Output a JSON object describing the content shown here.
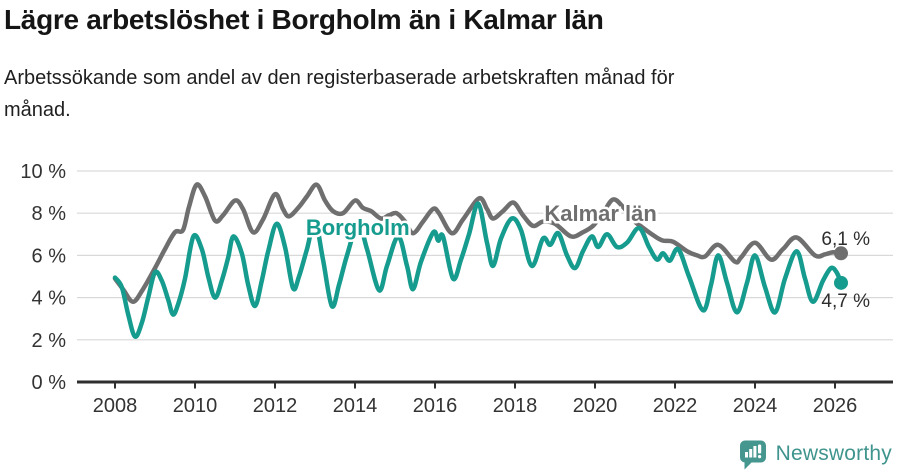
{
  "header": {
    "title": "Lägre arbetslöshet i Borgholm än i Kalmar län",
    "subtitle": "Arbetssökande som andel av den registerbaserade arbetskraften månad för månad."
  },
  "footer": {
    "brand": "Newsworthy",
    "brand_color": "#3f948e",
    "icon": "speech-bubble-bar-chart-icon"
  },
  "colors": {
    "borgholm": "#169c8e",
    "kalmar": "#6f6f6f",
    "grid": "#d9d9d9",
    "axis": "#2e2e2e"
  },
  "chart_data": {
    "type": "line",
    "title": "Lägre arbetslöshet i Borgholm än i Kalmar län",
    "subtitle": "Arbetssökande som andel av den registerbaserade arbetskraften månad för månad.",
    "unit": "%",
    "xlim": [
      2007.6,
      2026.9
    ],
    "ylim": [
      0,
      10
    ],
    "grid": "horizontal",
    "legend_position": "inline-labels",
    "x_ticks": [
      2008,
      2010,
      2012,
      2014,
      2016,
      2018,
      2020,
      2022,
      2024,
      2026
    ],
    "x_tick_labels": [
      "2008",
      "2010",
      "2012",
      "2014",
      "2016",
      "2018",
      "2020",
      "2022",
      "2024",
      "2026"
    ],
    "y_ticks": [
      0,
      2,
      4,
      6,
      8,
      10
    ],
    "y_tick_labels": [
      "0 %",
      "2 %",
      "4 %",
      "6 %",
      "8 %",
      "10 %"
    ],
    "series": [
      {
        "id": "kalmar-lan",
        "name": "Kalmar län",
        "color": "#6f6f6f",
        "end_value": 6.1,
        "end_label": "6,1 %",
        "end_label_pos": {
          "year": 2025.66,
          "pct": 6.5
        },
        "label_pos": {
          "year": 2020.14,
          "pct": 8.0
        },
        "points": [
          [
            2008.0,
            4.9
          ],
          [
            2008.2,
            4.4
          ],
          [
            2008.45,
            3.8
          ],
          [
            2008.7,
            4.4
          ],
          [
            2009.0,
            5.4
          ],
          [
            2009.25,
            6.3
          ],
          [
            2009.5,
            7.1
          ],
          [
            2009.7,
            7.2
          ],
          [
            2009.85,
            8.3
          ],
          [
            2010.04,
            9.35
          ],
          [
            2010.25,
            8.8
          ],
          [
            2010.5,
            7.65
          ],
          [
            2010.7,
            7.9
          ],
          [
            2011.0,
            8.6
          ],
          [
            2011.2,
            8.2
          ],
          [
            2011.45,
            7.1
          ],
          [
            2011.7,
            7.7
          ],
          [
            2012.0,
            8.9
          ],
          [
            2012.2,
            8.2
          ],
          [
            2012.35,
            7.85
          ],
          [
            2012.6,
            8.3
          ],
          [
            2012.8,
            8.8
          ],
          [
            2013.04,
            9.35
          ],
          [
            2013.25,
            8.6
          ],
          [
            2013.45,
            8.1
          ],
          [
            2013.7,
            8.0
          ],
          [
            2014.0,
            8.6
          ],
          [
            2014.2,
            8.25
          ],
          [
            2014.4,
            8.1
          ],
          [
            2014.65,
            7.75
          ],
          [
            2014.85,
            7.9
          ],
          [
            2015.04,
            8.0
          ],
          [
            2015.25,
            7.6
          ],
          [
            2015.45,
            7.05
          ],
          [
            2015.7,
            7.6
          ],
          [
            2015.95,
            8.2
          ],
          [
            2016.1,
            8.0
          ],
          [
            2016.42,
            7.05
          ],
          [
            2016.7,
            7.7
          ],
          [
            2017.1,
            8.7
          ],
          [
            2017.3,
            8.2
          ],
          [
            2017.45,
            7.75
          ],
          [
            2017.7,
            8.1
          ],
          [
            2017.96,
            8.5
          ],
          [
            2018.2,
            7.9
          ],
          [
            2018.45,
            7.4
          ],
          [
            2018.7,
            7.6
          ],
          [
            2019.0,
            7.5
          ],
          [
            2019.4,
            6.9
          ],
          [
            2019.7,
            7.1
          ],
          [
            2019.95,
            7.4
          ],
          [
            2020.2,
            8.0
          ],
          [
            2020.45,
            8.65
          ],
          [
            2020.7,
            8.3
          ],
          [
            2021.0,
            7.6
          ],
          [
            2021.17,
            7.35
          ],
          [
            2021.5,
            6.9
          ],
          [
            2021.7,
            6.7
          ],
          [
            2021.95,
            6.65
          ],
          [
            2022.3,
            6.2
          ],
          [
            2022.55,
            6.0
          ],
          [
            2022.75,
            5.95
          ],
          [
            2023.08,
            6.5
          ],
          [
            2023.5,
            5.7
          ],
          [
            2023.65,
            5.9
          ],
          [
            2024.0,
            6.6
          ],
          [
            2024.4,
            5.8
          ],
          [
            2024.7,
            6.3
          ],
          [
            2025.04,
            6.85
          ],
          [
            2025.5,
            6.0
          ],
          [
            2025.75,
            6.05
          ],
          [
            2025.95,
            6.15
          ],
          [
            2026.15,
            6.1
          ]
        ]
      },
      {
        "id": "borgholm",
        "name": "Borgholm",
        "color": "#169c8e",
        "end_value": 4.7,
        "end_label": "4,7 %",
        "end_label_pos": {
          "year": 2025.66,
          "pct": 3.55
        },
        "label_pos": {
          "year": 2014.07,
          "pct": 7.35
        },
        "points": [
          [
            2008.0,
            4.95
          ],
          [
            2008.17,
            4.5
          ],
          [
            2008.33,
            3.2
          ],
          [
            2008.5,
            2.15
          ],
          [
            2008.67,
            2.8
          ],
          [
            2008.83,
            4.0
          ],
          [
            2009.0,
            5.2
          ],
          [
            2009.17,
            4.8
          ],
          [
            2009.33,
            3.9
          ],
          [
            2009.45,
            3.2
          ],
          [
            2009.58,
            3.7
          ],
          [
            2009.75,
            4.9
          ],
          [
            2009.96,
            6.9
          ],
          [
            2010.17,
            6.3
          ],
          [
            2010.33,
            5.0
          ],
          [
            2010.5,
            4.0
          ],
          [
            2010.67,
            4.8
          ],
          [
            2010.83,
            5.9
          ],
          [
            2010.96,
            6.9
          ],
          [
            2011.17,
            6.1
          ],
          [
            2011.33,
            4.6
          ],
          [
            2011.5,
            3.6
          ],
          [
            2011.67,
            4.8
          ],
          [
            2011.83,
            6.2
          ],
          [
            2012.04,
            7.5
          ],
          [
            2012.25,
            6.4
          ],
          [
            2012.45,
            4.45
          ],
          [
            2012.6,
            5.0
          ],
          [
            2012.8,
            6.3
          ],
          [
            2013.0,
            7.6
          ],
          [
            2013.2,
            5.8
          ],
          [
            2013.42,
            3.6
          ],
          [
            2013.6,
            4.6
          ],
          [
            2013.8,
            6.0
          ],
          [
            2014.08,
            7.5
          ],
          [
            2014.3,
            6.3
          ],
          [
            2014.6,
            4.35
          ],
          [
            2014.8,
            5.5
          ],
          [
            2015.08,
            6.9
          ],
          [
            2015.3,
            5.5
          ],
          [
            2015.45,
            4.4
          ],
          [
            2015.65,
            5.7
          ],
          [
            2015.96,
            7.1
          ],
          [
            2016.08,
            6.7
          ],
          [
            2016.2,
            6.9
          ],
          [
            2016.45,
            4.9
          ],
          [
            2016.65,
            5.8
          ],
          [
            2016.85,
            7.0
          ],
          [
            2017.08,
            8.45
          ],
          [
            2017.3,
            6.6
          ],
          [
            2017.45,
            5.5
          ],
          [
            2017.65,
            6.8
          ],
          [
            2017.92,
            7.75
          ],
          [
            2018.15,
            7.2
          ],
          [
            2018.42,
            5.5
          ],
          [
            2018.7,
            6.8
          ],
          [
            2018.88,
            6.5
          ],
          [
            2019.08,
            7.05
          ],
          [
            2019.3,
            6.0
          ],
          [
            2019.5,
            5.4
          ],
          [
            2019.7,
            6.2
          ],
          [
            2019.92,
            6.9
          ],
          [
            2020.08,
            6.4
          ],
          [
            2020.3,
            7.0
          ],
          [
            2020.55,
            6.4
          ],
          [
            2020.8,
            6.6
          ],
          [
            2021.1,
            7.3
          ],
          [
            2021.35,
            6.4
          ],
          [
            2021.55,
            5.8
          ],
          [
            2021.7,
            6.1
          ],
          [
            2021.87,
            5.75
          ],
          [
            2022.08,
            6.3
          ],
          [
            2022.35,
            5.0
          ],
          [
            2022.7,
            3.4
          ],
          [
            2022.9,
            4.6
          ],
          [
            2023.08,
            6.0
          ],
          [
            2023.3,
            4.7
          ],
          [
            2023.55,
            3.3
          ],
          [
            2023.8,
            4.7
          ],
          [
            2024.0,
            6.0
          ],
          [
            2024.25,
            4.5
          ],
          [
            2024.5,
            3.3
          ],
          [
            2024.75,
            4.9
          ],
          [
            2025.04,
            6.2
          ],
          [
            2025.25,
            4.9
          ],
          [
            2025.45,
            3.8
          ],
          [
            2025.7,
            4.8
          ],
          [
            2025.9,
            5.4
          ],
          [
            2026.04,
            5.2
          ],
          [
            2026.15,
            4.7
          ]
        ]
      }
    ]
  }
}
